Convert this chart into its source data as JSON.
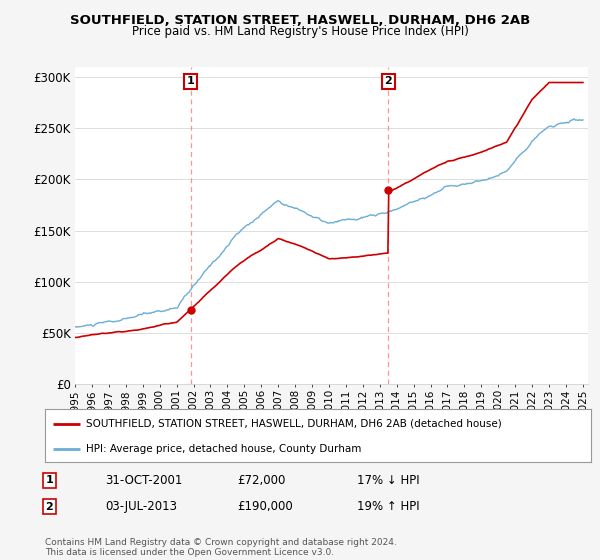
{
  "title": "SOUTHFIELD, STATION STREET, HASWELL, DURHAM, DH6 2AB",
  "subtitle": "Price paid vs. HM Land Registry's House Price Index (HPI)",
  "ylim": [
    0,
    310000
  ],
  "yticks": [
    0,
    50000,
    100000,
    150000,
    200000,
    250000,
    300000
  ],
  "ytick_labels": [
    "£0",
    "£50K",
    "£100K",
    "£150K",
    "£200K",
    "£250K",
    "£300K"
  ],
  "x_start_year": 1995,
  "x_end_year": 2025,
  "sale1_date": 2001.83,
  "sale1_price": 72000,
  "sale1_label": "1",
  "sale1_info": "31-OCT-2001",
  "sale1_amount": "£72,000",
  "sale1_hpi": "17% ↓ HPI",
  "sale2_date": 2013.5,
  "sale2_price": 190000,
  "sale2_label": "2",
  "sale2_info": "03-JUL-2013",
  "sale2_amount": "£190,000",
  "sale2_hpi": "19% ↑ HPI",
  "hpi_color": "#6baed6",
  "sale_color": "#cc0000",
  "vline_color": "#ff8888",
  "legend_label_sale": "SOUTHFIELD, STATION STREET, HASWELL, DURHAM, DH6 2AB (detached house)",
  "legend_label_hpi": "HPI: Average price, detached house, County Durham",
  "footer": "Contains HM Land Registry data © Crown copyright and database right 2024.\nThis data is licensed under the Open Government Licence v3.0.",
  "background_color": "#f5f5f5",
  "plot_background": "#ffffff"
}
